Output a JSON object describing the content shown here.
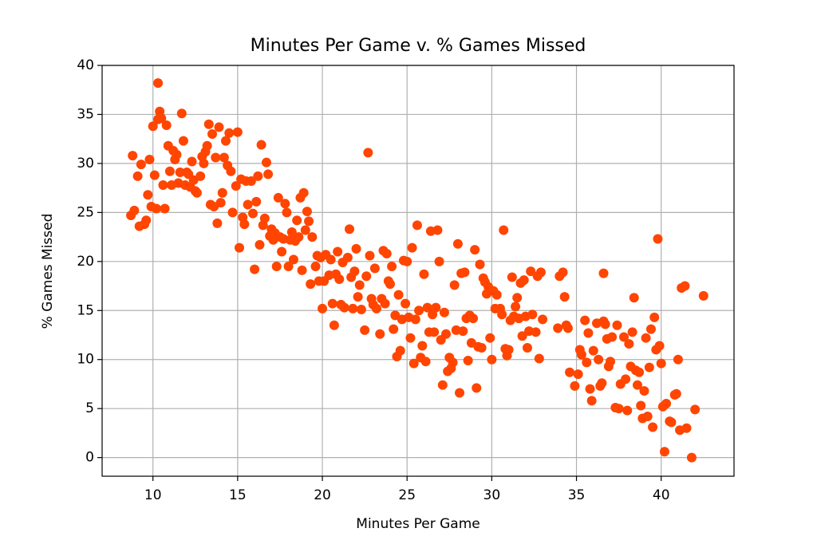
{
  "chart_data": {
    "type": "scatter",
    "title": "Minutes Per Game v. % Games Missed",
    "x_label": "Minutes Per Game",
    "y_label": "% Games Missed",
    "color": "#ff4500",
    "grid": true,
    "xlim": [
      7.0,
      44.3
    ],
    "ylim": [
      -1.9,
      40
    ],
    "xticks": [
      10,
      15,
      20,
      25,
      30,
      35,
      40
    ],
    "yticks": [
      0,
      5,
      10,
      15,
      20,
      25,
      30,
      35,
      40
    ],
    "x": [
      8.7,
      8.8,
      8.9,
      9.1,
      9.2,
      9.3,
      9.5,
      9.6,
      9.7,
      9.8,
      9.9,
      10.0,
      10.1,
      10.2,
      10.3,
      10.3,
      10.4,
      10.5,
      10.6,
      10.7,
      10.8,
      10.9,
      11.0,
      11.1,
      11.2,
      11.3,
      11.4,
      11.5,
      11.6,
      11.7,
      11.8,
      11.9,
      12.0,
      12.1,
      12.2,
      12.3,
      12.4,
      12.5,
      12.6,
      12.8,
      12.9,
      13.0,
      13.1,
      13.2,
      13.3,
      13.4,
      13.5,
      13.6,
      13.7,
      13.8,
      13.9,
      14.0,
      14.1,
      14.2,
      14.3,
      14.4,
      14.5,
      14.6,
      14.7,
      14.9,
      15.0,
      15.1,
      15.2,
      15.3,
      15.4,
      15.5,
      15.6,
      15.8,
      15.9,
      16.0,
      16.1,
      16.2,
      16.3,
      16.4,
      16.5,
      16.6,
      16.7,
      16.8,
      16.9,
      17.0,
      17.1,
      17.2,
      17.3,
      17.4,
      17.5,
      17.6,
      17.7,
      17.8,
      17.9,
      18.0,
      18.1,
      18.2,
      18.3,
      18.4,
      18.5,
      18.6,
      18.7,
      18.8,
      18.9,
      19.0,
      19.1,
      19.2,
      19.3,
      19.4,
      19.6,
      19.7,
      19.8,
      19.9,
      20.0,
      20.1,
      20.2,
      20.4,
      20.5,
      20.6,
      20.7,
      20.8,
      20.9,
      21.0,
      21.1,
      21.2,
      21.3,
      21.5,
      21.6,
      21.7,
      21.8,
      21.9,
      22.0,
      22.1,
      22.2,
      22.3,
      22.5,
      22.6,
      22.7,
      22.8,
      22.9,
      23.0,
      23.1,
      23.2,
      23.4,
      23.5,
      23.6,
      23.7,
      23.8,
      23.9,
      24.0,
      24.1,
      24.2,
      24.3,
      24.4,
      24.5,
      24.6,
      24.7,
      24.8,
      24.9,
      25.0,
      25.1,
      25.2,
      25.3,
      25.4,
      25.5,
      25.6,
      25.7,
      25.8,
      25.9,
      26.0,
      26.1,
      26.2,
      26.3,
      26.4,
      26.5,
      26.6,
      26.7,
      26.8,
      26.9,
      27.0,
      27.1,
      27.2,
      27.3,
      27.4,
      27.5,
      27.6,
      27.7,
      27.8,
      27.9,
      28.0,
      28.1,
      28.2,
      28.3,
      28.4,
      28.5,
      28.6,
      28.7,
      28.8,
      28.9,
      29.0,
      29.1,
      29.2,
      29.3,
      29.4,
      29.5,
      29.6,
      29.7,
      29.8,
      29.9,
      30.0,
      30.1,
      30.2,
      30.3,
      30.5,
      30.6,
      30.7,
      30.8,
      30.9,
      31.0,
      31.1,
      31.2,
      31.3,
      31.4,
      31.5,
      31.6,
      31.7,
      31.8,
      31.9,
      32.0,
      32.1,
      32.2,
      32.3,
      32.4,
      32.6,
      32.7,
      32.8,
      32.9,
      33.0,
      33.9,
      34.0,
      34.2,
      34.3,
      34.4,
      34.5,
      34.6,
      34.9,
      35.1,
      35.2,
      35.3,
      35.5,
      35.6,
      35.7,
      35.8,
      35.9,
      36.0,
      36.2,
      36.3,
      36.4,
      36.5,
      36.6,
      36.6,
      36.7,
      36.8,
      36.9,
      37.0,
      37.1,
      37.3,
      37.4,
      37.5,
      37.6,
      37.8,
      37.9,
      38.0,
      38.1,
      38.2,
      38.3,
      38.4,
      38.5,
      38.6,
      38.7,
      38.8,
      38.9,
      39.0,
      39.1,
      39.2,
      39.3,
      39.4,
      39.5,
      39.6,
      39.7,
      39.8,
      39.9,
      40.0,
      40.1,
      40.2,
      40.3,
      40.5,
      40.6,
      40.8,
      40.9,
      41.0,
      41.1,
      41.2,
      41.4,
      41.5,
      41.8,
      42.0,
      42.5
    ],
    "values": [
      24.7,
      30.8,
      25.2,
      28.7,
      23.6,
      29.9,
      23.8,
      24.2,
      26.8,
      30.4,
      25.6,
      33.8,
      28.8,
      25.4,
      34.5,
      38.2,
      35.3,
      34.6,
      27.8,
      25.4,
      33.9,
      31.8,
      29.2,
      27.8,
      31.3,
      30.4,
      30.9,
      28.0,
      29.1,
      35.1,
      32.3,
      27.8,
      29.1,
      28.9,
      27.6,
      30.2,
      28.3,
      27.2,
      27.0,
      28.7,
      30.7,
      30.0,
      31.2,
      31.8,
      34.0,
      25.8,
      33.0,
      25.6,
      30.6,
      23.9,
      33.7,
      26.0,
      27.0,
      30.6,
      32.3,
      29.8,
      33.1,
      29.2,
      25.0,
      27.7,
      33.2,
      21.4,
      28.4,
      24.5,
      23.8,
      28.2,
      25.8,
      28.2,
      24.9,
      19.2,
      26.1,
      28.7,
      21.7,
      31.9,
      23.7,
      24.4,
      30.1,
      28.9,
      22.6,
      23.3,
      22.2,
      22.9,
      19.5,
      26.5,
      22.5,
      21.0,
      22.3,
      25.9,
      25.0,
      19.5,
      22.2,
      23.0,
      20.2,
      22.1,
      24.2,
      22.5,
      26.5,
      19.1,
      27.0,
      23.2,
      25.1,
      24.1,
      17.7,
      22.5,
      19.5,
      20.6,
      18.0,
      20.4,
      15.2,
      18.0,
      20.7,
      18.6,
      20.2,
      15.7,
      13.5,
      18.7,
      21.0,
      18.2,
      15.6,
      19.9,
      15.3,
      20.4,
      23.3,
      18.4,
      15.2,
      19.0,
      21.3,
      16.4,
      17.6,
      15.1,
      13.0,
      18.5,
      31.1,
      20.6,
      16.2,
      15.6,
      19.3,
      15.2,
      12.6,
      16.2,
      21.1,
      15.7,
      20.8,
      18.0,
      17.7,
      19.5,
      13.1,
      14.5,
      10.3,
      16.6,
      10.9,
      14.1,
      20.1,
      15.7,
      20.0,
      14.3,
      12.2,
      21.4,
      9.6,
      14.1,
      23.7,
      15.0,
      10.2,
      11.4,
      18.7,
      9.8,
      15.3,
      12.8,
      23.1,
      14.6,
      12.8,
      15.3,
      23.2,
      20.0,
      12.0,
      7.4,
      14.8,
      12.6,
      8.8,
      10.2,
      9.1,
      9.7,
      17.6,
      13.0,
      21.8,
      6.6,
      18.8,
      12.9,
      18.9,
      14.2,
      9.9,
      14.5,
      11.7,
      14.2,
      21.2,
      7.1,
      11.3,
      19.7,
      11.2,
      18.3,
      17.9,
      16.7,
      17.4,
      12.2,
      10.0,
      17.0,
      15.2,
      16.6,
      15.2,
      14.6,
      23.2,
      11.1,
      10.4,
      11.0,
      14.0,
      18.4,
      14.4,
      15.4,
      16.3,
      14.2,
      17.8,
      12.4,
      18.1,
      14.4,
      11.2,
      12.9,
      19.0,
      14.6,
      12.8,
      18.5,
      10.1,
      18.9,
      14.1,
      13.2,
      18.5,
      18.9,
      16.4,
      13.5,
      13.2,
      8.7,
      7.3,
      8.5,
      11.0,
      10.5,
      14.0,
      9.7,
      12.7,
      7.0,
      5.8,
      10.9,
      13.7,
      10.0,
      7.3,
      7.6,
      13.9,
      18.8,
      13.6,
      12.1,
      9.3,
      9.8,
      12.3,
      5.1,
      13.5,
      5.0,
      7.5,
      12.3,
      8.0,
      4.8,
      11.6,
      9.3,
      12.8,
      16.3,
      8.9,
      7.4,
      8.7,
      5.3,
      4.0,
      6.8,
      12.2,
      4.2,
      9.2,
      13.1,
      3.1,
      14.3,
      11.0,
      22.3,
      11.4,
      9.6,
      5.2,
      0.6,
      5.5,
      3.7,
      3.6,
      6.4,
      6.5,
      10.0,
      2.8,
      17.3,
      17.5,
      3.0,
      0.0,
      4.9,
      16.5
    ]
  }
}
